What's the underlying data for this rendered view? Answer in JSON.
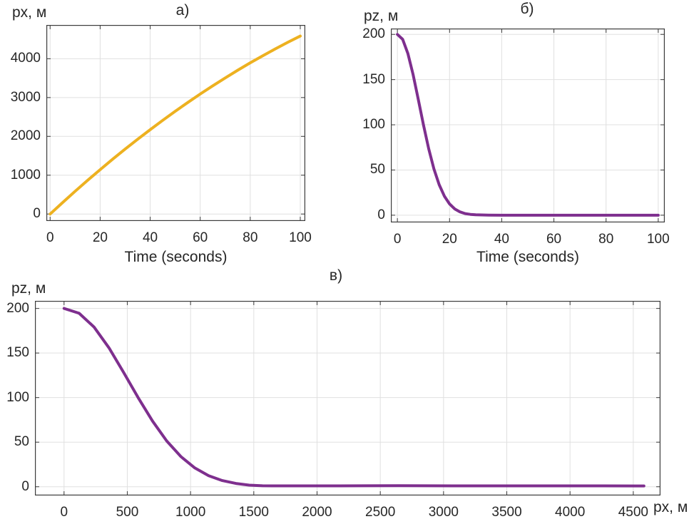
{
  "figure": {
    "background": "#FFFFFF",
    "text_color": "#262626",
    "grid_color": "#E0E0E0",
    "axis_color": "#3C3C3C",
    "grid_on": true,
    "legend": "none"
  },
  "chart_data": [
    {
      "id": "a",
      "type": "line",
      "title": "а)",
      "ylabel": "px, м",
      "xlabel": "Time (seconds)",
      "color": "#EDB120",
      "line_width": 4,
      "xlim": [
        -1.5,
        102
      ],
      "ylim": [
        -180,
        4870
      ],
      "xticks": [
        0,
        20,
        40,
        60,
        80,
        100
      ],
      "yticks": [
        0,
        1000,
        2000,
        3000,
        4000
      ],
      "x": [
        0,
        5,
        10,
        15,
        20,
        25,
        30,
        35,
        40,
        45,
        50,
        55,
        60,
        65,
        70,
        75,
        80,
        85,
        90,
        95,
        100
      ],
      "y": [
        0,
        296,
        586,
        868,
        1143,
        1412,
        1673,
        1927,
        2173,
        2413,
        2646,
        2872,
        3090,
        3302,
        3506,
        3704,
        3894,
        4077,
        4253,
        4422,
        4584
      ]
    },
    {
      "id": "b",
      "type": "line",
      "title": "б)",
      "ylabel": "pz, м",
      "xlabel": "Time (seconds)",
      "color": "#7E2F8E",
      "line_width": 4,
      "xlim": [
        -2.5,
        102.5
      ],
      "ylim": [
        -8,
        206.5
      ],
      "xticks": [
        0,
        20,
        40,
        60,
        80,
        100
      ],
      "yticks": [
        0,
        50,
        100,
        150,
        200
      ],
      "x": [
        0,
        2,
        4,
        6,
        8,
        10,
        12,
        14,
        16,
        18,
        20,
        22,
        24,
        26,
        28,
        30,
        35,
        40,
        50,
        60,
        70,
        80,
        90,
        100
      ],
      "y": [
        200,
        194.6,
        179,
        155.8,
        128.2,
        99.9,
        73.6,
        51.3,
        33.8,
        21.1,
        12.4,
        6.9,
        3.7,
        1.8,
        0.9,
        0.4,
        0.1,
        0,
        0,
        0,
        0,
        0,
        0,
        0
      ]
    },
    {
      "id": "v",
      "type": "line",
      "title": "в)",
      "ylabel": "pz, м",
      "xlabel_right": "px, м",
      "color": "#7E2F8E",
      "line_width": 4,
      "xlim": [
        -230,
        4715
      ],
      "ylim": [
        -9.8,
        208.5
      ],
      "xticks": [
        0,
        500,
        1000,
        1500,
        2000,
        2500,
        3000,
        3500,
        4000,
        4500
      ],
      "yticks": [
        0,
        50,
        100,
        150,
        200
      ],
      "x": [
        0,
        119,
        238,
        355,
        471,
        586,
        700,
        812,
        924,
        1034,
        1143,
        1251,
        1358,
        1464,
        1569,
        1673,
        1927,
        2173,
        2646,
        3090,
        3506,
        3894,
        4253,
        4584
      ],
      "y": [
        200,
        194.6,
        179,
        155.8,
        128.2,
        99.9,
        73.6,
        51.3,
        33.8,
        21.1,
        12.4,
        6.9,
        3.7,
        1.8,
        1.1,
        1,
        1,
        1,
        1.2,
        1,
        1,
        1,
        1,
        0.9
      ]
    }
  ]
}
